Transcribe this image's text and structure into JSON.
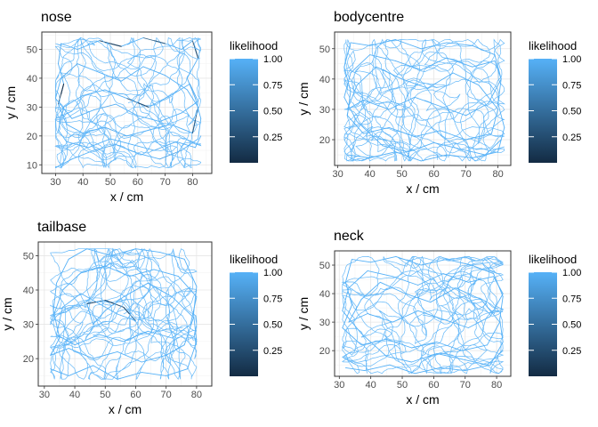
{
  "chart_data": [
    {
      "type": "line",
      "title": "nose",
      "xlabel": "x / cm",
      "ylabel": "y / cm",
      "xlim": [
        25,
        87
      ],
      "ylim": [
        7,
        56
      ],
      "x_ticks": [
        30,
        40,
        50,
        60,
        70,
        80
      ],
      "y_ticks": [
        10,
        20,
        30,
        40,
        50
      ],
      "grid": true,
      "legend": {
        "title": "likelihood",
        "position": "right",
        "ticks": [
          0.25,
          0.5,
          0.75,
          1.0
        ],
        "tick_labels": [
          "0.25",
          "0.50",
          "0.75",
          "1.00"
        ],
        "range": [
          0.0,
          1.0
        ],
        "low_color": "#132b43",
        "high_color": "#56b1f7"
      },
      "series": [
        {
          "x": [
            30,
            36,
            44,
            52,
            60,
            68,
            76,
            82,
            83,
            81,
            78,
            82,
            80,
            76,
            70,
            62,
            54,
            46,
            38,
            32,
            31,
            33,
            31,
            34,
            40,
            48,
            56,
            64,
            72,
            80,
            82,
            78,
            70,
            62,
            54,
            46,
            38,
            32,
            30,
            36,
            44,
            52,
            60,
            68,
            76,
            82,
            79,
            72,
            64,
            56,
            48,
            40,
            33,
            31,
            34,
            42,
            50,
            58,
            66,
            74,
            81,
            83
          ],
          "y": [
            9,
            12,
            15,
            17,
            14,
            12,
            15,
            19,
            26,
            33,
            40,
            47,
            53,
            50,
            52,
            54,
            51,
            53,
            50,
            52,
            45,
            38,
            31,
            24,
            21,
            23,
            20,
            22,
            24,
            21,
            30,
            36,
            41,
            44,
            39,
            42,
            45,
            40,
            33,
            26,
            29,
            31,
            27,
            25,
            28,
            32,
            38,
            34,
            30,
            33,
            36,
            34,
            30,
            22,
            18,
            16,
            19,
            17,
            15,
            18,
            16,
            20
          ],
          "likelihood": [
            1.0,
            1.0,
            0.95,
            1.0,
            1.0,
            0.9,
            1.0,
            1.0,
            1.0,
            0.98,
            1.0,
            0.3,
            0.95,
            1.0,
            0.4,
            1.0,
            0.2,
            1.0,
            1.0,
            0.95,
            1.0,
            0.1,
            1.0,
            1.0,
            1.0,
            0.95,
            1.0,
            1.0,
            1.0,
            0.4,
            1.0,
            1.0,
            0.98,
            1.0,
            1.0,
            1.0,
            0.92,
            1.0,
            1.0,
            1.0,
            0.95,
            1.0,
            1.0,
            1.0,
            1.0,
            0.97,
            1.0,
            1.0,
            0.3,
            1.0,
            1.0,
            1.0,
            0.95,
            1.0,
            1.0,
            1.0,
            1.0,
            1.0,
            0.96,
            1.0,
            1.0,
            1.0
          ]
        }
      ]
    },
    {
      "type": "line",
      "title": "bodycentre",
      "xlabel": "x / cm",
      "ylabel": "y / cm",
      "xlim": [
        29,
        84
      ],
      "ylim": [
        11.5,
        55.5
      ],
      "x_ticks": [
        30,
        40,
        50,
        60,
        70,
        80
      ],
      "y_ticks": [
        20,
        30,
        40,
        50
      ],
      "grid": true,
      "legend": {
        "title": "likelihood",
        "position": "right",
        "ticks": [
          0.25,
          0.5,
          0.75,
          1.0
        ],
        "tick_labels": [
          "0.25",
          "0.50",
          "0.75",
          "1.00"
        ],
        "range": [
          0.0,
          1.0
        ],
        "low_color": "#132b43",
        "high_color": "#56b1f7"
      },
      "series": [
        {
          "x": [
            33,
            40,
            48,
            56,
            64,
            72,
            80,
            82,
            80,
            81,
            79,
            72,
            64,
            56,
            48,
            40,
            34,
            32,
            34,
            33,
            38,
            46,
            54,
            62,
            70,
            78,
            80,
            74,
            66,
            58,
            50,
            42,
            36,
            33,
            38,
            46,
            54,
            62,
            70,
            77,
            81,
            79,
            72,
            64,
            56,
            48,
            40,
            34,
            32,
            36,
            44,
            52,
            60,
            68,
            76,
            81
          ],
          "y": [
            15,
            14,
            16,
            13,
            15,
            14,
            16,
            24,
            32,
            40,
            48,
            51,
            52,
            50,
            53,
            51,
            52,
            44,
            36,
            28,
            22,
            24,
            21,
            23,
            20,
            22,
            30,
            38,
            42,
            37,
            40,
            44,
            38,
            30,
            33,
            30,
            34,
            31,
            28,
            32,
            40,
            46,
            44,
            47,
            43,
            46,
            48,
            42,
            34,
            26,
            18,
            16,
            19,
            17,
            15,
            20
          ],
          "likelihood": [
            1.0,
            1.0,
            1.0,
            0.98,
            1.0,
            1.0,
            1.0,
            1.0,
            1.0,
            1.0,
            0.97,
            1.0,
            1.0,
            1.0,
            1.0,
            1.0,
            1.0,
            1.0,
            0.98,
            1.0,
            1.0,
            1.0,
            1.0,
            1.0,
            1.0,
            1.0,
            1.0,
            1.0,
            0.99,
            1.0,
            1.0,
            1.0,
            1.0,
            1.0,
            1.0,
            1.0,
            1.0,
            1.0,
            1.0,
            1.0,
            1.0,
            1.0,
            1.0,
            1.0,
            1.0,
            1.0,
            1.0,
            1.0,
            1.0,
            1.0,
            1.0,
            1.0,
            1.0,
            1.0,
            1.0,
            1.0
          ]
        }
      ]
    },
    {
      "type": "line",
      "title": "tailbase",
      "xlabel": "x / cm",
      "ylabel": "y / cm",
      "xlim": [
        28,
        85
      ],
      "ylim": [
        12,
        54
      ],
      "x_ticks": [
        30,
        40,
        50,
        60,
        70,
        80
      ],
      "y_ticks": [
        20,
        30,
        40,
        50
      ],
      "grid": true,
      "legend": {
        "title": "likelihood",
        "position": "right",
        "ticks": [
          0.25,
          0.5,
          0.75,
          1.0
        ],
        "tick_labels": [
          "0.25",
          "0.50",
          "0.75",
          "1.00"
        ],
        "range": [
          0.0,
          1.0
        ],
        "low_color": "#132b43",
        "high_color": "#56b1f7"
      },
      "series": [
        {
          "x": [
            32,
            38,
            46,
            54,
            62,
            70,
            77,
            80,
            79,
            80,
            76,
            68,
            60,
            52,
            44,
            38,
            34,
            33,
            35,
            32,
            38,
            46,
            54,
            62,
            70,
            76,
            79,
            72,
            64,
            56,
            50,
            46,
            44,
            50,
            56,
            60,
            54,
            48,
            42,
            36,
            34,
            40,
            48,
            56,
            64,
            72,
            78,
            80,
            74,
            66,
            58,
            50,
            42,
            36,
            32
          ],
          "y": [
            17,
            15,
            18,
            14,
            16,
            15,
            17,
            25,
            33,
            41,
            49,
            51,
            52,
            50,
            52,
            49,
            42,
            34,
            26,
            21,
            23,
            20,
            22,
            19,
            21,
            24,
            32,
            38,
            42,
            38,
            34,
            30,
            36,
            37,
            35,
            31,
            33,
            36,
            39,
            35,
            27,
            24,
            27,
            25,
            28,
            26,
            30,
            38,
            44,
            46,
            44,
            47,
            45,
            40,
            30
          ],
          "likelihood": [
            1.0,
            1.0,
            1.0,
            1.0,
            1.0,
            1.0,
            1.0,
            1.0,
            1.0,
            1.0,
            1.0,
            1.0,
            1.0,
            1.0,
            1.0,
            1.0,
            1.0,
            1.0,
            1.0,
            1.0,
            1.0,
            1.0,
            1.0,
            1.0,
            1.0,
            1.0,
            1.0,
            1.0,
            1.0,
            1.0,
            1.0,
            1.0,
            0.3,
            0.25,
            0.3,
            1.0,
            1.0,
            1.0,
            1.0,
            1.0,
            1.0,
            1.0,
            1.0,
            1.0,
            1.0,
            1.0,
            1.0,
            1.0,
            1.0,
            1.0,
            1.0,
            1.0,
            1.0,
            1.0,
            1.0
          ]
        }
      ]
    },
    {
      "type": "line",
      "title": "neck",
      "xlabel": "x / cm",
      "ylabel": "y / cm",
      "xlim": [
        28.5,
        84.5
      ],
      "ylim": [
        11,
        55
      ],
      "x_ticks": [
        30,
        40,
        50,
        60,
        70,
        80
      ],
      "y_ticks": [
        20,
        30,
        40,
        50
      ],
      "grid": true,
      "legend": {
        "title": "likelihood",
        "position": "right",
        "ticks": [
          0.25,
          0.5,
          0.75,
          1.0
        ],
        "tick_labels": [
          "0.25",
          "0.50",
          "0.75",
          "1.00"
        ],
        "range": [
          0.0,
          1.0
        ],
        "low_color": "#132b43",
        "high_color": "#56b1f7"
      },
      "series": [
        {
          "x": [
            32,
            38,
            46,
            54,
            62,
            70,
            78,
            82,
            81,
            82,
            79,
            72,
            64,
            56,
            48,
            40,
            34,
            32,
            34,
            31,
            37,
            45,
            53,
            61,
            69,
            77,
            81,
            75,
            67,
            59,
            51,
            43,
            37,
            33,
            39,
            47,
            55,
            63,
            71,
            78,
            82,
            79,
            71,
            63,
            55,
            47,
            39,
            33,
            31,
            37,
            45,
            53,
            61,
            69,
            77,
            82
          ],
          "y": [
            14,
            13,
            15,
            12,
            14,
            13,
            15,
            23,
            31,
            39,
            47,
            50,
            52,
            50,
            53,
            51,
            52,
            44,
            36,
            28,
            22,
            24,
            21,
            23,
            20,
            22,
            30,
            38,
            42,
            37,
            40,
            44,
            38,
            30,
            33,
            30,
            34,
            31,
            28,
            32,
            40,
            46,
            44,
            47,
            43,
            46,
            48,
            42,
            34,
            26,
            18,
            16,
            19,
            17,
            15,
            20
          ],
          "likelihood": [
            1.0,
            1.0,
            1.0,
            0.98,
            1.0,
            1.0,
            1.0,
            1.0,
            1.0,
            1.0,
            0.97,
            1.0,
            1.0,
            1.0,
            1.0,
            1.0,
            1.0,
            1.0,
            0.98,
            1.0,
            1.0,
            1.0,
            1.0,
            1.0,
            1.0,
            1.0,
            1.0,
            1.0,
            0.99,
            1.0,
            1.0,
            1.0,
            1.0,
            1.0,
            1.0,
            1.0,
            1.0,
            1.0,
            1.0,
            1.0,
            1.0,
            1.0,
            1.0,
            1.0,
            1.0,
            1.0,
            1.0,
            1.0,
            1.0,
            1.0,
            1.0,
            1.0,
            1.0,
            1.0,
            1.0,
            1.0
          ]
        }
      ]
    }
  ]
}
